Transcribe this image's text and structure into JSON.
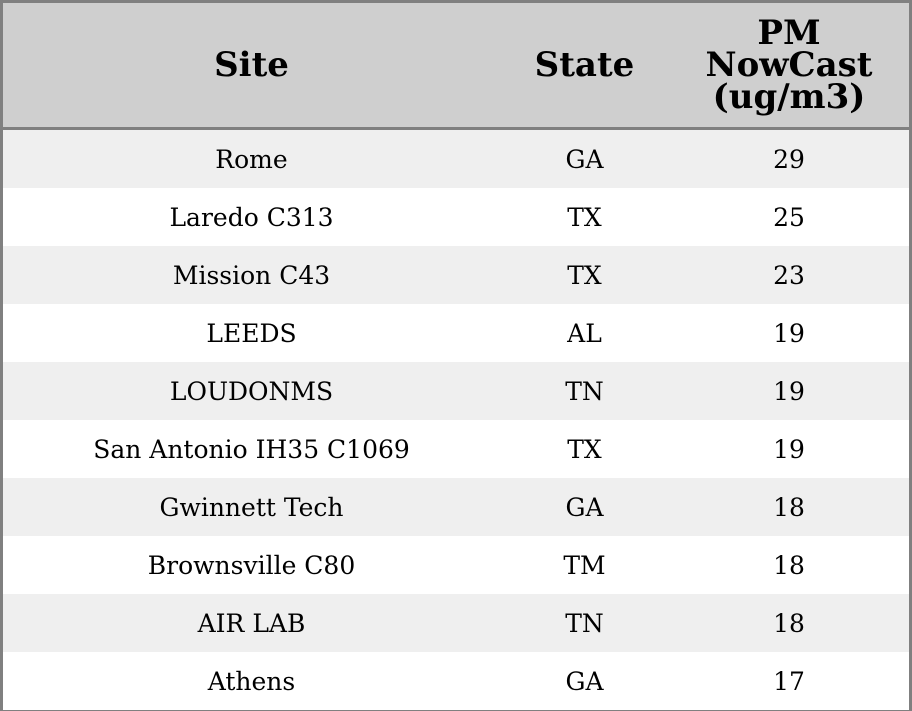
{
  "chart_data": {
    "type": "table",
    "columns": [
      "Site",
      "State",
      [
        "PM",
        "NowCast",
        "(ug/m3)"
      ]
    ],
    "rows": [
      [
        "Rome",
        "GA",
        "29"
      ],
      [
        "Laredo C313",
        "TX",
        "25"
      ],
      [
        "Mission C43",
        "TX",
        "23"
      ],
      [
        "LEEDS",
        "AL",
        "19"
      ],
      [
        "LOUDONMS",
        "TN",
        "19"
      ],
      [
        "San Antonio IH35 C1069",
        "TX",
        "19"
      ],
      [
        "Gwinnett Tech",
        "GA",
        "18"
      ],
      [
        "Brownsville C80",
        "TM",
        "18"
      ],
      [
        "AIR LAB",
        "TN",
        "18"
      ],
      [
        "Athens",
        "GA",
        "17"
      ]
    ],
    "colors": {
      "header_bg": "#cfcfcf",
      "row_alt_bg": "#efefef",
      "row_bg": "#ffffff",
      "border": "#808080"
    }
  }
}
